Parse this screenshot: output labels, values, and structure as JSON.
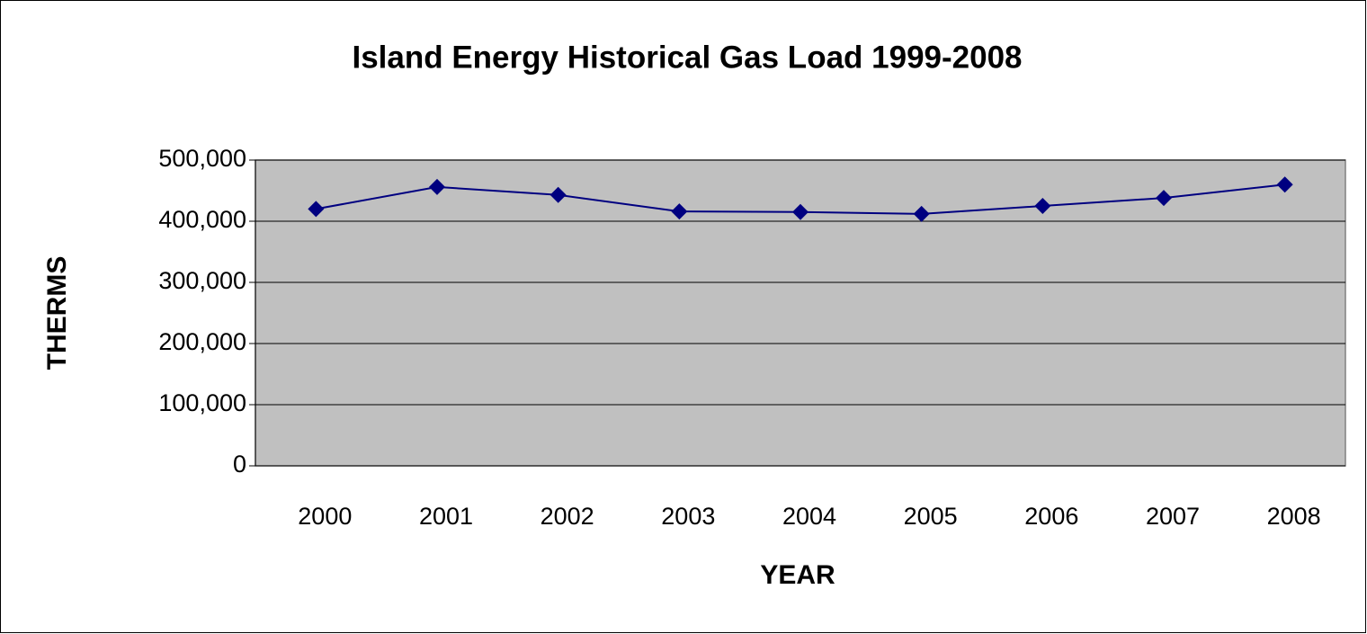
{
  "chart_data": {
    "type": "line",
    "title": "Island Energy Historical Gas Load 1999-2008",
    "x_label": "YEAR",
    "y_label": "THERMS",
    "categories": [
      "2000",
      "2001",
      "2002",
      "2003",
      "2004",
      "2005",
      "2006",
      "2007",
      "2008"
    ],
    "series": [
      {
        "name": "Therms",
        "color": "#000080",
        "values": [
          420000,
          456000,
          443000,
          416000,
          415000,
          412000,
          425000,
          438000,
          460000
        ]
      }
    ],
    "ylim": [
      0,
      500000
    ],
    "yticks": [
      0,
      {
        "value": 100000,
        "label": "100,000"
      },
      {
        "value": 200000,
        "label": "200,000"
      },
      {
        "value": 300000,
        "label": "300,000"
      },
      {
        "value": 400000,
        "label": "400,000"
      },
      {
        "value": 500000,
        "label": "500,000"
      }
    ],
    "grid": true,
    "plot_background": "#c0c0c0"
  }
}
